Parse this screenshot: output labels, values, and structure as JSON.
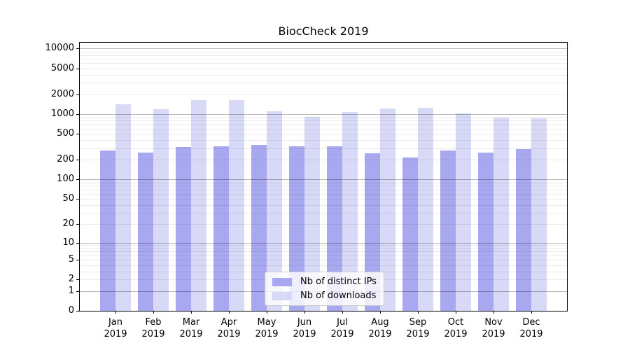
{
  "chart_data": {
    "type": "bar",
    "title": "BiocCheck 2019",
    "categories": [
      "Jan",
      "Feb",
      "Mar",
      "Apr",
      "May",
      "Jun",
      "Jul",
      "Aug",
      "Sep",
      "Oct",
      "Nov",
      "Dec"
    ],
    "category_year": "2019",
    "series": [
      {
        "name": "Nb of distinct IPs",
        "color": "#a8a8f0",
        "values": [
          275,
          260,
          315,
          320,
          335,
          320,
          325,
          250,
          220,
          275,
          260,
          290
        ]
      },
      {
        "name": "Nb of downloads",
        "color": "#d8d8f7",
        "values": [
          1400,
          1190,
          1650,
          1650,
          1100,
          910,
          1080,
          1210,
          1240,
          1020,
          890,
          870
        ]
      }
    ],
    "xlabel": "",
    "ylabel": "",
    "yscale": "log1p",
    "ylim": [
      0,
      12300
    ],
    "yticks": [
      10000,
      5000,
      2000,
      1000,
      500,
      200,
      100,
      50,
      20,
      10,
      5,
      2,
      1,
      0
    ],
    "grid": "on",
    "grid_position": "above-bars",
    "legend_position": "lower-center",
    "colors": {
      "major_gridline": "rgba(0,0,0,0.28)",
      "minor_gridline": "rgba(0,0,0,0.08)",
      "axis": "#000000",
      "background": "#ffffff"
    }
  }
}
